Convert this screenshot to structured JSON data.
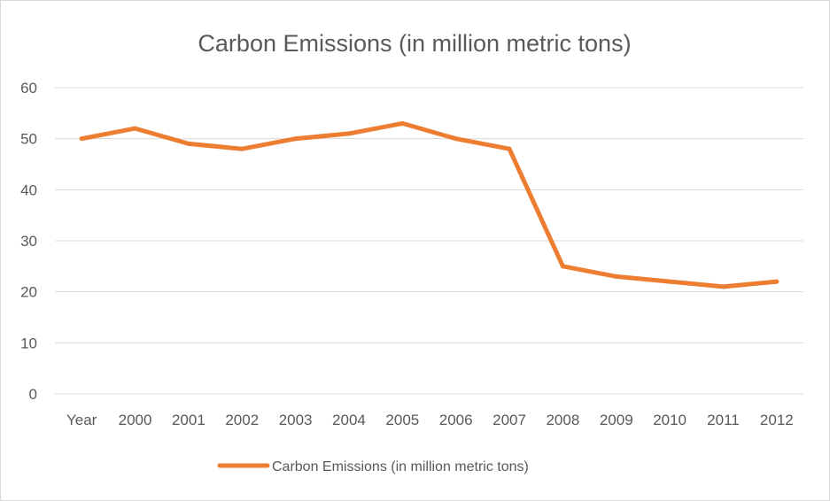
{
  "chart_data": {
    "type": "line",
    "title": "Carbon Emissions (in million metric tons)",
    "categories": [
      "Year",
      "2000",
      "2001",
      "2002",
      "2003",
      "2004",
      "2005",
      "2006",
      "2007",
      "2008",
      "2009",
      "2010",
      "2011",
      "2012"
    ],
    "series": [
      {
        "name": "Carbon Emissions (in million metric tons)",
        "values": [
          50,
          52,
          49,
          48,
          50,
          51,
          53,
          50,
          48,
          25,
          23,
          22,
          21,
          22
        ],
        "color": "#ED7D31"
      }
    ],
    "yticks": [
      "0",
      "10",
      "20",
      "30",
      "40",
      "50",
      "60"
    ],
    "ylim": [
      0,
      60
    ],
    "grid": true,
    "legend_position": "bottom"
  }
}
